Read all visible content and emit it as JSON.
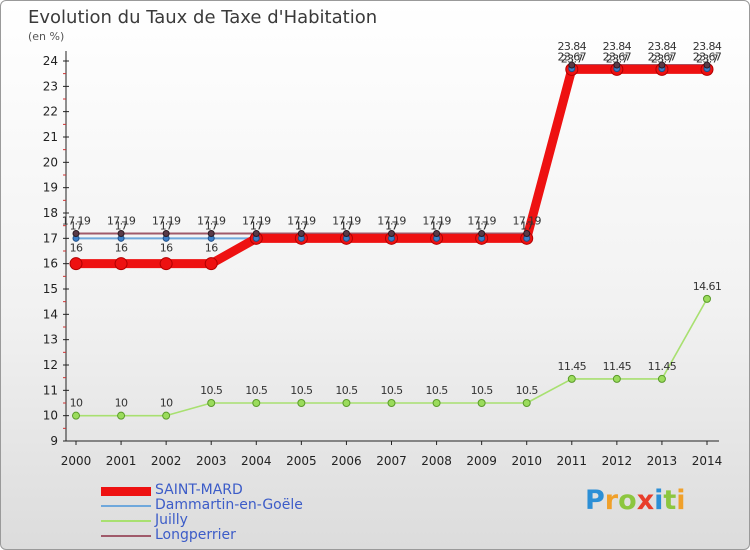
{
  "header": {
    "title": "Evolution du Taux de Taxe d'Habitation",
    "subtitle": "(en %)"
  },
  "brand": {
    "text": "Proxiti",
    "letters": [
      "P",
      "r",
      "o",
      "x",
      "i",
      "t",
      "i"
    ],
    "colors": [
      "#2c8fd6",
      "#f0a02a",
      "#8cc63f",
      "#e83e2b",
      "#2c8fd6",
      "#8cc63f",
      "#f0a02a"
    ]
  },
  "chart_data": {
    "type": "line",
    "title": "Evolution du Taux de Taxe d'Habitation",
    "ylabel": "(en %)",
    "xlabel": "",
    "x": [
      "2000",
      "2001",
      "2002",
      "2003",
      "2004",
      "2005",
      "2006",
      "2007",
      "2008",
      "2009",
      "2010",
      "2011",
      "2012",
      "2013",
      "2014"
    ],
    "ylim": [
      9,
      24
    ],
    "yticks": [
      9,
      10,
      11,
      12,
      13,
      14,
      15,
      16,
      17,
      18,
      19,
      20,
      21,
      22,
      23,
      24
    ],
    "grid": false,
    "legend_position": "bottom-left",
    "series": [
      {
        "name": "SAINT-MARD",
        "color": "#ee1111",
        "values": [
          16,
          16,
          16,
          16,
          17,
          17,
          17,
          17,
          17,
          17,
          17,
          23.67,
          23.67,
          23.67,
          23.67
        ],
        "labels": [
          "16",
          "16",
          "16",
          "16",
          "17",
          "17",
          "17",
          "17",
          "17",
          "17",
          "17",
          "23.67",
          "23.67",
          "23.67",
          "23.67"
        ]
      },
      {
        "name": "Dammartin-en-Goële",
        "color": "#6fa8dc",
        "values": [
          17,
          17,
          17,
          17,
          17,
          17,
          17,
          17,
          17,
          17,
          17,
          23.7,
          23.7,
          23.7,
          23.7
        ],
        "labels": [
          "17",
          "17",
          "17",
          "17",
          "17",
          "17",
          "17",
          "17",
          "17",
          "17",
          "17",
          "23.7",
          "23.7",
          "23.7",
          "23.7"
        ]
      },
      {
        "name": "Juilly",
        "color": "#a8e070",
        "values": [
          10,
          10,
          10,
          10.5,
          10.5,
          10.5,
          10.5,
          10.5,
          10.5,
          10.5,
          10.5,
          11.45,
          11.45,
          11.45,
          14.61
        ],
        "labels": [
          "10",
          "10",
          "10",
          "10.5",
          "10.5",
          "10.5",
          "10.5",
          "10.5",
          "10.5",
          "10.5",
          "10.5",
          "11.45",
          "11.45",
          "11.45",
          "14.61"
        ]
      },
      {
        "name": "Longperrier",
        "color": "#a05a6a",
        "values": [
          17.19,
          17.19,
          17.19,
          17.19,
          17.19,
          17.19,
          17.19,
          17.19,
          17.19,
          17.19,
          17.19,
          23.84,
          23.84,
          23.84,
          23.84
        ],
        "labels": [
          "17.19",
          "17.19",
          "17.19",
          "17.19",
          "17.19",
          "17.19",
          "17.19",
          "17.19",
          "17.19",
          "17.19",
          "17.19",
          "23.84",
          "23.84",
          "23.84",
          "23.84"
        ]
      }
    ]
  }
}
